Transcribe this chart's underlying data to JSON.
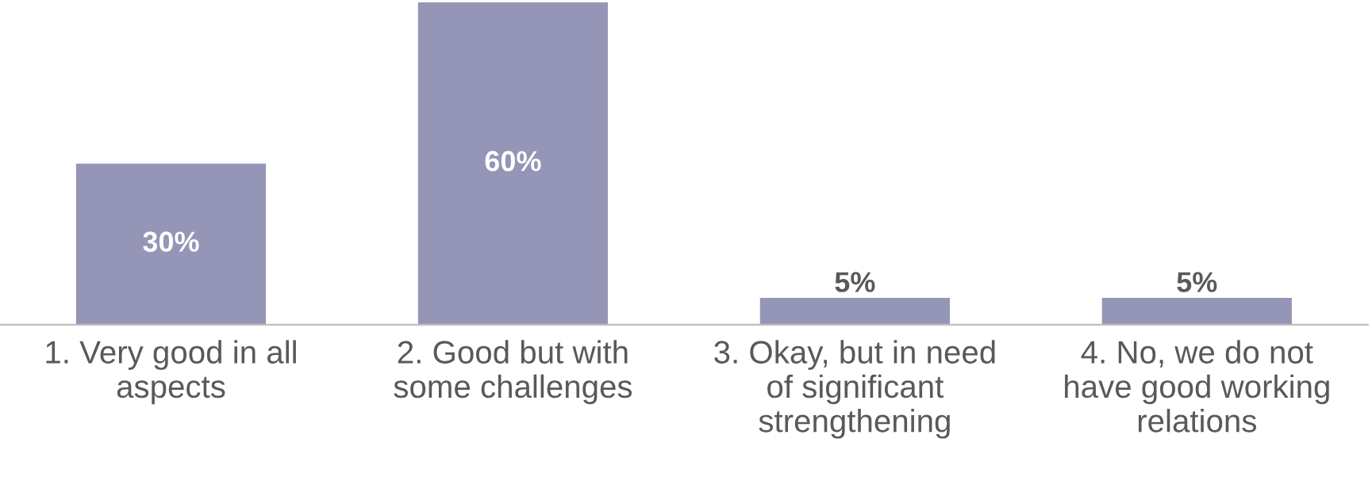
{
  "chart_data": {
    "type": "bar",
    "categories": [
      "1. Very good in all\naspects",
      "2. Good but with\nsome challenges",
      "3. Okay, but in need\nof significant\nstrengthening",
      "4. No, we do not\nhave good working\nrelations"
    ],
    "values": [
      30,
      60,
      5,
      5
    ],
    "value_labels": [
      "30%",
      "60%",
      "5%",
      "5%"
    ],
    "color": "#9595b7",
    "grid": false,
    "legend": false
  }
}
